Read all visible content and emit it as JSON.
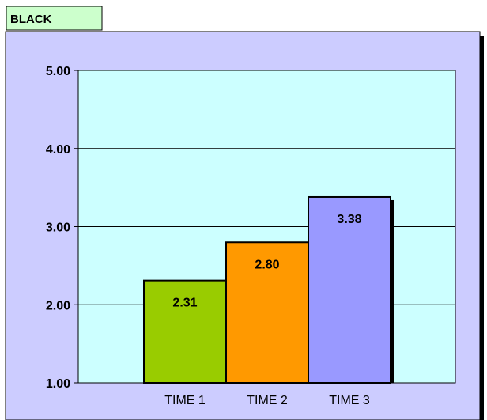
{
  "title_tab": "BLACK",
  "colors": {
    "outer_panel": "#ccccff",
    "plot_area": "#ccffff",
    "tab_fill": "#ccffcc",
    "bar_shadow": "#000000"
  },
  "chart_data": {
    "type": "bar",
    "categories": [
      "TIME 1",
      "TIME 2",
      "TIME 3"
    ],
    "values": [
      2.31,
      2.8,
      3.38
    ],
    "value_labels": [
      "2.31",
      "2.80",
      "3.38"
    ],
    "bar_colors": [
      "#99cc00",
      "#ff9900",
      "#9999ff"
    ],
    "ylim": [
      1.0,
      5.0
    ],
    "yticks": [
      1.0,
      2.0,
      3.0,
      4.0,
      5.0
    ],
    "ytick_labels": [
      "1.00",
      "2.00",
      "3.00",
      "4.00",
      "5.00"
    ],
    "grid": true,
    "legend": "none"
  }
}
